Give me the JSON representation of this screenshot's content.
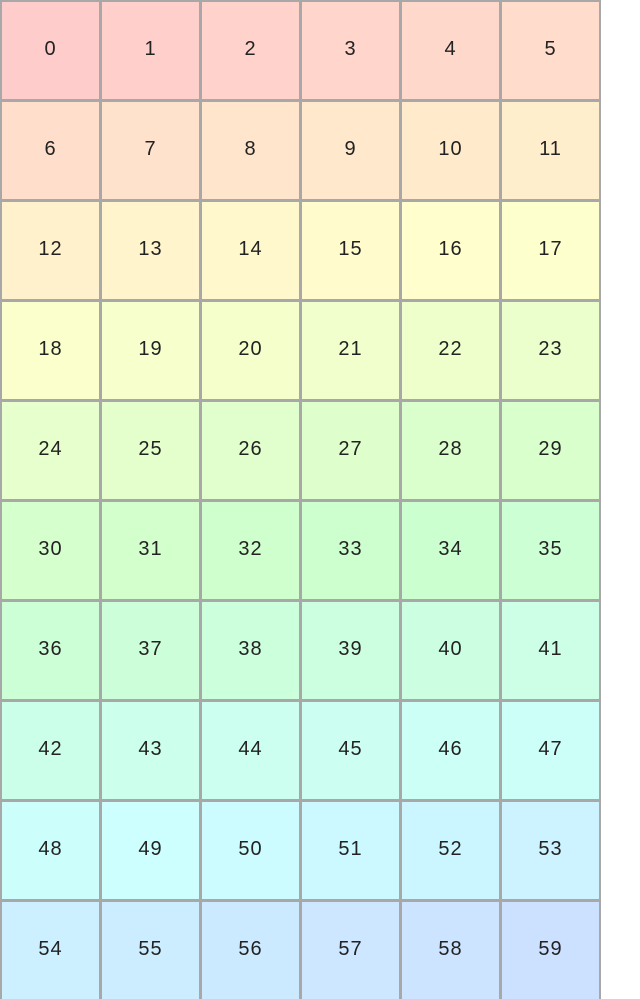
{
  "grid": {
    "columns": 6,
    "cells": [
      "0",
      "1",
      "2",
      "3",
      "4",
      "5",
      "6",
      "7",
      "8",
      "9",
      "10",
      "11",
      "12",
      "13",
      "14",
      "15",
      "16",
      "17",
      "18",
      "19",
      "20",
      "21",
      "22",
      "23",
      "24",
      "25",
      "26",
      "27",
      "28",
      "29",
      "30",
      "31",
      "32",
      "33",
      "34",
      "35",
      "36",
      "37",
      "38",
      "39",
      "40",
      "41",
      "42",
      "43",
      "44",
      "45",
      "46",
      "47",
      "48",
      "49",
      "50",
      "51",
      "52",
      "53",
      "54",
      "55",
      "56",
      "57",
      "58",
      "59"
    ],
    "colors": {
      "first_cell": "#ffcccc",
      "last_cell": "#cce0ff",
      "border": "#a8a8a8",
      "text": "#222222"
    }
  }
}
